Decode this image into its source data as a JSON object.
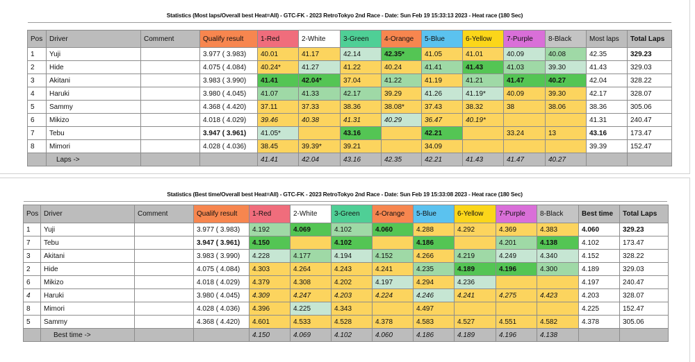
{
  "colors": {
    "header_gray": "#bcbcbc",
    "qualify": "#f7864f",
    "red": "#f06d7c",
    "white": "#ffffff",
    "green": "#4fcf96",
    "orange": "#f7864f",
    "blue": "#5bc2ef",
    "yellow": "#fbd61a",
    "purple": "#d96fd8",
    "black": "#c4c4c4",
    "cell_yellow": "#fcd45e",
    "cell_best_green": "#54c554",
    "cell_mid_green": "#9fd9a6",
    "cell_light_green": "#c6e6d3"
  },
  "most_laps": {
    "title": "Statistics (Most laps/Overall best Heat=All) - GTC-FK - 2023 RetroTokyo 2nd Race - Date: Sun Feb 19 15:33:13 2023 - Heat race (180 Sec)",
    "headers": [
      "Pos",
      "Driver",
      "Comment",
      "Qualify result",
      "1-Red",
      "2-White",
      "3-Green",
      "4-Orange",
      "5-Blue",
      "6-Yellow",
      "7-Purple",
      "8-Black",
      "Most laps",
      "Total Laps"
    ],
    "rows": [
      {
        "pos": "1",
        "driver": "Yuji",
        "comment": "",
        "qualify": "3.977 ( 3.983)",
        "lanes": [
          "40.01",
          "41.17",
          "42.14",
          "42.35*",
          "41.05",
          "41.01",
          "40.09",
          "40.08"
        ],
        "shade": [
          "y",
          "y",
          "l",
          "g",
          "y",
          "y",
          "l",
          "m"
        ],
        "most": "42.35",
        "total": "329.23"
      },
      {
        "pos": "2",
        "driver": "Hide",
        "comment": "",
        "qualify": "4.075 ( 4.084)",
        "lanes": [
          "40.24*",
          "41.27",
          "41.22",
          "40.24",
          "41.41",
          "41.43",
          "41.03",
          "39.30"
        ],
        "shade": [
          "y",
          "l",
          "y",
          "y",
          "m",
          "g",
          "m",
          "l"
        ],
        "most": "41.43",
        "total": "329.03"
      },
      {
        "pos": "3",
        "driver": "Akitani",
        "comment": "",
        "qualify": "3.983 ( 3.990)",
        "lanes": [
          "41.41",
          "42.04*",
          "37.04",
          "41.22",
          "41.19",
          "41.21",
          "41.47",
          "40.27"
        ],
        "shade": [
          "g",
          "g",
          "y",
          "m",
          "y",
          "m",
          "g",
          "g"
        ],
        "most": "42.04",
        "total": "328.22"
      },
      {
        "pos": "4",
        "driver": "Haruki",
        "comment": "",
        "qualify": "3.980 ( 4.045)",
        "lanes": [
          "41.07",
          "41.33",
          "42.17",
          "39.29",
          "41.26",
          "41.19*",
          "40.09",
          "39.30"
        ],
        "shade": [
          "m",
          "m",
          "m",
          "y",
          "l",
          "l",
          "y",
          "y"
        ],
        "most": "42.17",
        "total": "328.07"
      },
      {
        "pos": "5",
        "driver": "Sammy",
        "comment": "",
        "qualify": "4.368 ( 4.420)",
        "lanes": [
          "37.11",
          "37.33",
          "38.36",
          "38.08*",
          "37.43",
          "38.32",
          "38",
          "38.06"
        ],
        "shade": [
          "y",
          "y",
          "y",
          "y",
          "y",
          "y",
          "y",
          "y"
        ],
        "most": "38.36",
        "total": "305.06"
      },
      {
        "pos": "6",
        "driver": "Mikizo",
        "comment": "",
        "qualify": "4.018 ( 4.029)",
        "lanes": [
          "39.46",
          "40.38",
          "41.31",
          "40.29",
          "36.47",
          "40.19*",
          "",
          ""
        ],
        "shade": [
          "y",
          "y",
          "y",
          "l",
          "y",
          "y",
          "y",
          "y"
        ],
        "most": "41.31",
        "total": "240.47"
      },
      {
        "pos": "7",
        "driver": "Tebu",
        "comment": "",
        "qualify": "3.947 ( 3.961)",
        "lanes": [
          "41.05*",
          "",
          "43.16",
          "",
          "42.21",
          "",
          "33.24",
          "13"
        ],
        "shade": [
          "l",
          "y",
          "g",
          "y",
          "g",
          "y",
          "y",
          "y"
        ],
        "most": "43.16",
        "total": "173.47"
      },
      {
        "pos": "8",
        "driver": "Mimori",
        "comment": "",
        "qualify": "4.028 ( 4.036)",
        "lanes": [
          "38.45",
          "39.39*",
          "39.21",
          "",
          "34.09",
          "",
          "",
          ""
        ],
        "shade": [
          "y",
          "y",
          "y",
          "y",
          "y",
          "y",
          "y",
          "y"
        ],
        "most": "39.39",
        "total": "152.47"
      }
    ],
    "footer_label": "Laps ->",
    "footer_values": [
      "41.41",
      "42.04",
      "43.16",
      "42.35",
      "42.21",
      "41.43",
      "41.47",
      "40.27"
    ]
  },
  "best_time": {
    "title": "Statistics (Best time/Overall best Heat=All) - GTC-FK - 2023 RetroTokyo 2nd Race - Date: Sun Feb 19 15:33:08 2023 - Heat race (180 Sec)",
    "headers": [
      "Pos",
      "Driver",
      "Comment",
      "Qualify result",
      "1-Red",
      "2-White",
      "3-Green",
      "4-Orange",
      "5-Blue",
      "6-Yellow",
      "7-Purple",
      "8-Black",
      "Best time",
      "Total Laps"
    ],
    "rows": [
      {
        "pos": "1",
        "driver": "Yuji",
        "comment": "",
        "qualify": "3.977 ( 3.983)",
        "lanes": [
          "4.192",
          "4.069",
          "4.102",
          "4.060",
          "4.288",
          "4.292",
          "4.369",
          "4.383"
        ],
        "shade": [
          "m",
          "g",
          "m",
          "g",
          "y",
          "y",
          "y",
          "y"
        ],
        "best": "4.060",
        "total": "329.23"
      },
      {
        "pos": "7",
        "driver": "Tebu",
        "comment": "",
        "qualify": "3.947 ( 3.961)",
        "lanes": [
          "4.150",
          "",
          "4.102",
          "",
          "4.186",
          "",
          "4.201",
          "4.138"
        ],
        "shade": [
          "g",
          "y",
          "g",
          "y",
          "g",
          "y",
          "m",
          "g"
        ],
        "best": "4.102",
        "total": "173.47"
      },
      {
        "pos": "3",
        "driver": "Akitani",
        "comment": "",
        "qualify": "3.983 ( 3.990)",
        "lanes": [
          "4.228",
          "4.177",
          "4.194",
          "4.152",
          "4.266",
          "4.219",
          "4.249",
          "4.340"
        ],
        "shade": [
          "l",
          "m",
          "l",
          "m",
          "y",
          "m",
          "l",
          "l"
        ],
        "best": "4.152",
        "total": "328.22"
      },
      {
        "pos": "2",
        "driver": "Hide",
        "comment": "",
        "qualify": "4.075 ( 4.084)",
        "lanes": [
          "4.303",
          "4.264",
          "4.243",
          "4.241",
          "4.235",
          "4.189",
          "4.196",
          "4.300"
        ],
        "shade": [
          "y",
          "y",
          "y",
          "y",
          "m",
          "g",
          "g",
          "m"
        ],
        "best": "4.189",
        "total": "329.03"
      },
      {
        "pos": "6",
        "driver": "Mikizo",
        "comment": "",
        "qualify": "4.018 ( 4.029)",
        "lanes": [
          "4.379",
          "4.308",
          "4.202",
          "4.197",
          "4.294",
          "4.236",
          "",
          ""
        ],
        "shade": [
          "y",
          "y",
          "y",
          "l",
          "y",
          "l",
          "y",
          "y"
        ],
        "best": "4.197",
        "total": "240.47"
      },
      {
        "pos": "4",
        "driver": "Haruki",
        "comment": "",
        "qualify": "3.980 ( 4.045)",
        "lanes": [
          "4.309",
          "4.247",
          "4.203",
          "4.224",
          "4.246",
          "4.241",
          "4.275",
          "4.423"
        ],
        "shade": [
          "y",
          "y",
          "y",
          "y",
          "l",
          "y",
          "y",
          "y"
        ],
        "best": "4.203",
        "total": "328.07"
      },
      {
        "pos": "8",
        "driver": "Mimori",
        "comment": "",
        "qualify": "4.028 ( 4.036)",
        "lanes": [
          "4.396",
          "4.225",
          "4.343",
          "",
          "4.497",
          "",
          "",
          ""
        ],
        "shade": [
          "y",
          "l",
          "y",
          "y",
          "y",
          "y",
          "y",
          "y"
        ],
        "best": "4.225",
        "total": "152.47"
      },
      {
        "pos": "5",
        "driver": "Sammy",
        "comment": "",
        "qualify": "4.368 ( 4.420)",
        "lanes": [
          "4.601",
          "4.533",
          "4.528",
          "4.378",
          "4.583",
          "4.527",
          "4.551",
          "4.582"
        ],
        "shade": [
          "y",
          "y",
          "y",
          "y",
          "y",
          "y",
          "y",
          "y"
        ],
        "best": "4.378",
        "total": "305.06"
      }
    ],
    "footer_label": "Best time ->",
    "footer_values": [
      "4.150",
      "4.069",
      "4.102",
      "4.060",
      "4.186",
      "4.189",
      "4.196",
      "4.138"
    ]
  }
}
